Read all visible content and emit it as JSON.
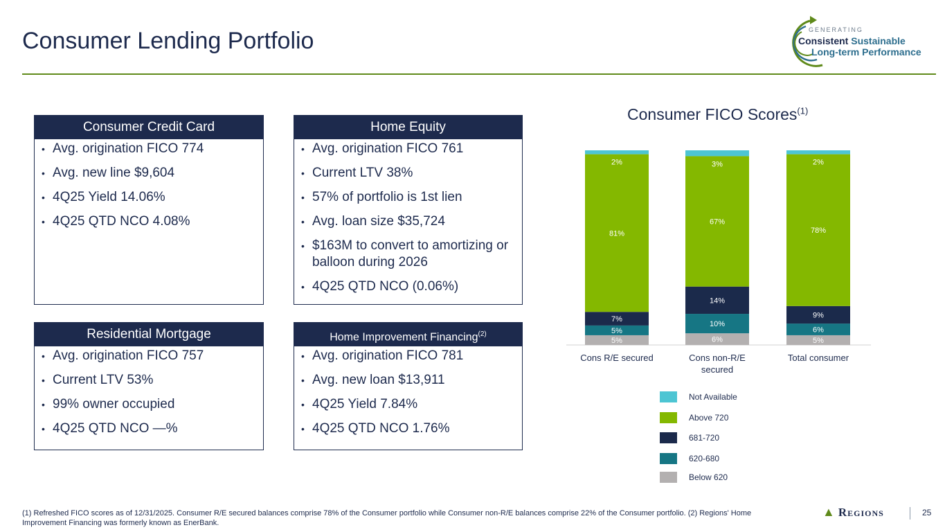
{
  "page": {
    "title": "Consumer Lending Portfolio",
    "logo": {
      "line0": "GENERATING",
      "line1a": "Consistent",
      "line1b": "Sustainable",
      "line2": "Long-term Performance"
    },
    "page_number": "25",
    "brand": "Regions",
    "footnote": "(1) Refreshed FICO scores as of 12/31/2025. Consumer R/E secured balances comprise 78% of the Consumer portfolio while Consumer non-R/E balances comprise 22% of the Consumer portfolio. (2) Regions' Home Improvement Financing was formerly known as EnerBank."
  },
  "boxes": {
    "credit_card": {
      "title": "Consumer Credit Card",
      "items": [
        "Avg. origination FICO 774",
        "Avg. new line $9,604",
        "4Q25 Yield 14.06%",
        "4Q25 QTD NCO 4.08%"
      ]
    },
    "home_equity": {
      "title": "Home Equity",
      "items": [
        "Avg. origination FICO 761",
        "Current LTV 38%",
        "57% of portfolio is 1st lien",
        "Avg. loan size $35,724",
        "$163M to convert to amortizing or balloon during 2026",
        "4Q25 QTD NCO (0.06%)"
      ]
    },
    "mortgage": {
      "title": "Residential Mortgage",
      "items": [
        "Avg. origination FICO 757",
        "Current LTV 53%",
        "99% owner occupied",
        "4Q25 QTD NCO —%"
      ]
    },
    "home_improvement": {
      "title": "Home Improvement Financing",
      "title_sup": "(2)",
      "items": [
        "Avg. origination FICO 781",
        "Avg. new loan $13,911",
        "4Q25 Yield 7.84%",
        "4Q25 QTD NCO 1.76%"
      ]
    }
  },
  "chart_data": {
    "type": "bar",
    "stacked": true,
    "title": "Consumer FICO Scores",
    "title_sup": "(1)",
    "categories": [
      "Cons R/E secured",
      "Cons non-R/E secured",
      "Total consumer"
    ],
    "series": [
      {
        "name": "Below 620",
        "values": [
          5,
          6,
          5
        ],
        "labels": [
          "5%",
          "6%",
          "5%"
        ],
        "color": "#b3b0b0"
      },
      {
        "name": "620-680",
        "values": [
          5,
          10,
          6
        ],
        "labels": [
          "5%",
          "10%",
          "6%"
        ],
        "color": "#167684"
      },
      {
        "name": "681-720",
        "values": [
          7,
          14,
          9
        ],
        "labels": [
          "7%",
          "14%",
          "9%"
        ],
        "color": "#1b2a4b"
      },
      {
        "name": "Above 720",
        "values": [
          81,
          67,
          78
        ],
        "labels": [
          "81%",
          "67%",
          "78%"
        ],
        "color": "#84b800"
      },
      {
        "name": "Not Available",
        "values": [
          2,
          3,
          2
        ],
        "labels": [
          "2%",
          "3%",
          "2%"
        ],
        "color": "#4dc5d3"
      }
    ],
    "legend_order": [
      "Not Available",
      "Above 720",
      "681-720",
      "620-680",
      "Below 620"
    ],
    "legend_position": "bottom-center",
    "ylim": [
      0,
      100
    ],
    "grid": false
  }
}
